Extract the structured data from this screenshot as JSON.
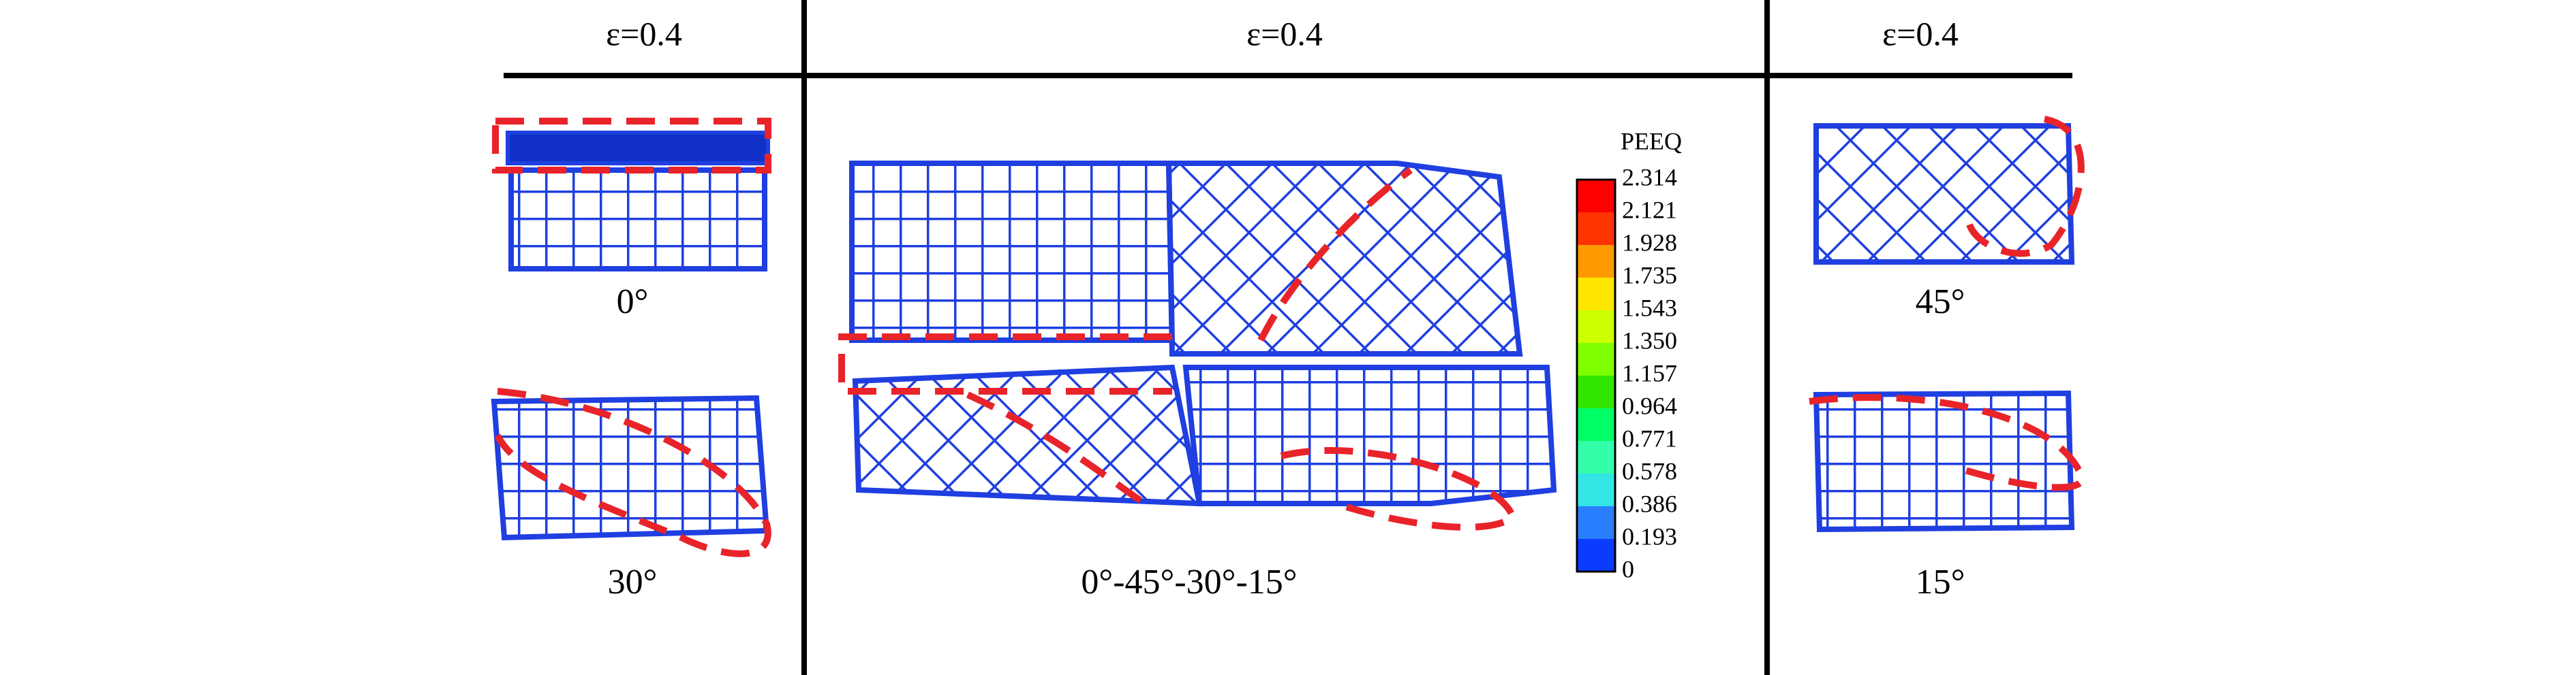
{
  "headers": [
    "ε=0.4",
    "ε=0.4",
    "ε=0.4"
  ],
  "panels": {
    "left_top": "0°",
    "left_bottom": "30°",
    "center": "0°-45°-30°-15°",
    "right_top": "45°",
    "right_bottom": "15°"
  },
  "legend": {
    "title": "PEEQ",
    "labels": [
      "2.314",
      "2.121",
      "1.928",
      "1.735",
      "1.543",
      "1.350",
      "1.157",
      "0.964",
      "0.771",
      "0.578",
      "0.386",
      "0.193",
      "0"
    ]
  }
}
